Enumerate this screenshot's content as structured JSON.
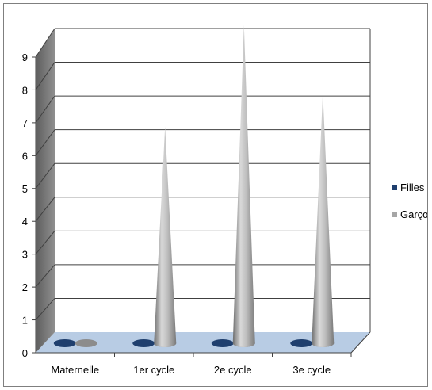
{
  "chart_data": {
    "type": "bar",
    "subtype": "3d-cone",
    "categories": [
      "Maternelle",
      "1er cycle",
      "2e cycle",
      "3e cycle"
    ],
    "series": [
      {
        "name": "Filles",
        "values": [
          0,
          0,
          0,
          0
        ],
        "color": "#1f3f6e"
      },
      {
        "name": "Garçons",
        "values": [
          0,
          6,
          9,
          7
        ],
        "color": "#a6a6a6"
      }
    ],
    "yticks": [
      "0",
      "1",
      "2",
      "3",
      "4",
      "5",
      "6",
      "7",
      "8",
      "9"
    ],
    "ylim": [
      0,
      9
    ],
    "grid": true,
    "legend_position": "right",
    "colors": {
      "wall": "#ffffff",
      "side_wall": "#808080",
      "floor": "#b8cce4",
      "gridline": "#404040"
    }
  }
}
